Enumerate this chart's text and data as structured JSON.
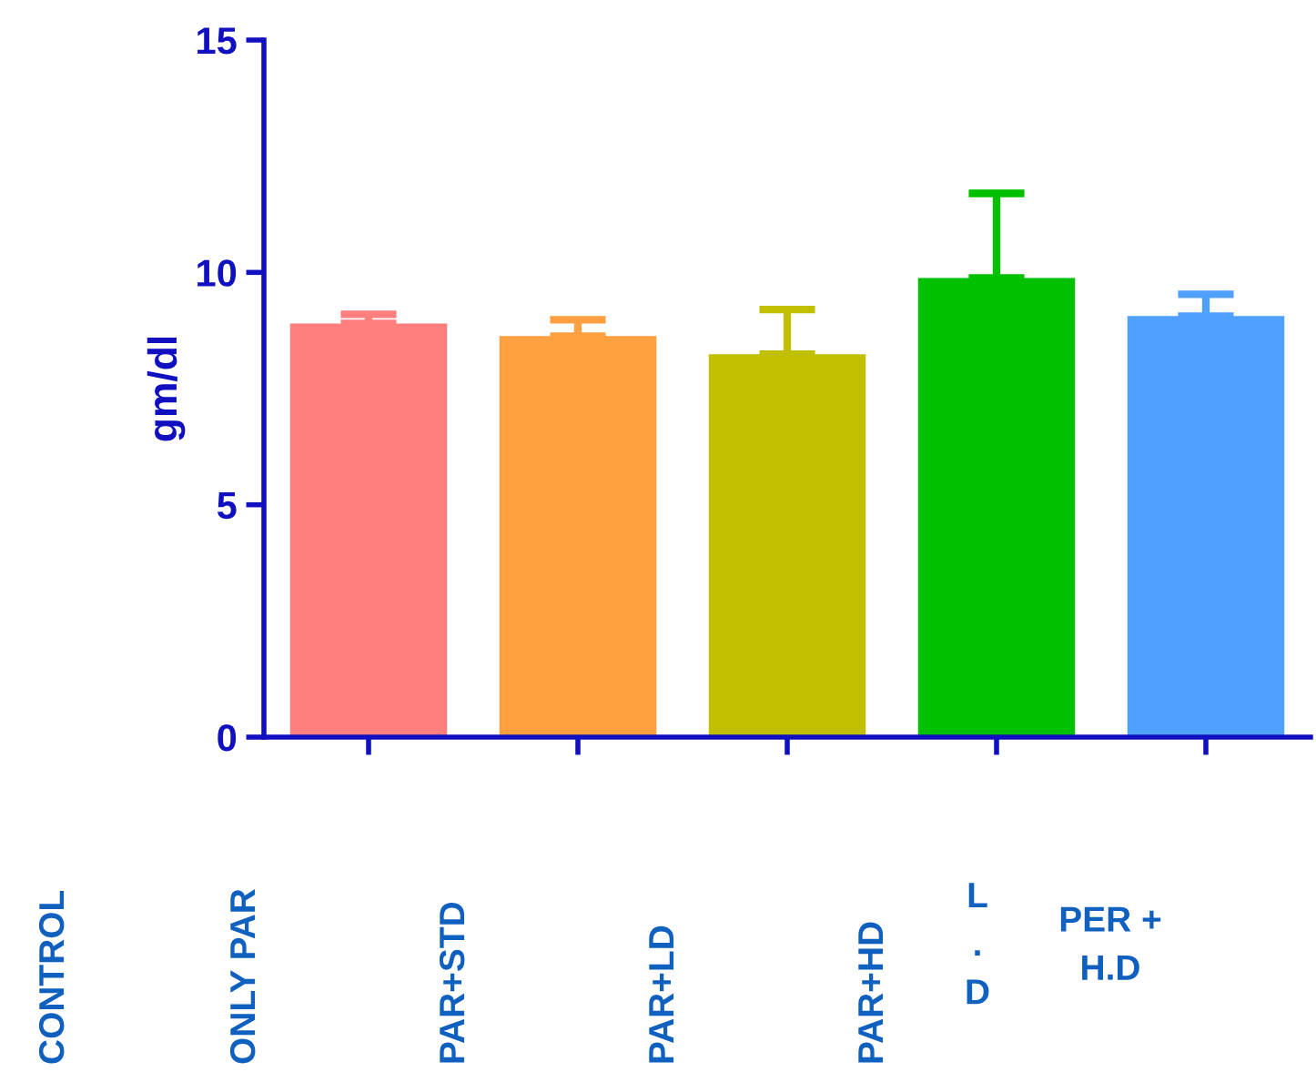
{
  "chart_data": {
    "type": "bar",
    "ylabel": "gm/dl",
    "categories": [
      null,
      null,
      null,
      null,
      null
    ],
    "values": [
      8.9,
      8.63,
      8.24,
      9.88,
      9.06
    ],
    "colors": [
      "#ff7f7f",
      "#ffa040",
      "#c0c000",
      "#00c000",
      "#50a0ff"
    ],
    "errors": [
      [
        8.9,
        9.1
      ],
      [
        8.63,
        8.98
      ],
      [
        8.24,
        9.2
      ],
      [
        9.88,
        11.7
      ],
      [
        9.06,
        9.53
      ]
    ],
    "ylim": [
      0,
      15
    ],
    "yticks": [
      0,
      5,
      10,
      15
    ],
    "grid": false,
    "legend": false,
    "annotations": [
      "CONTROL",
      "ONLY PAR",
      "PAR+STD",
      "PAR+LD",
      "PAR+HD",
      "L\n.\nD",
      "PER +\nH.D"
    ]
  }
}
